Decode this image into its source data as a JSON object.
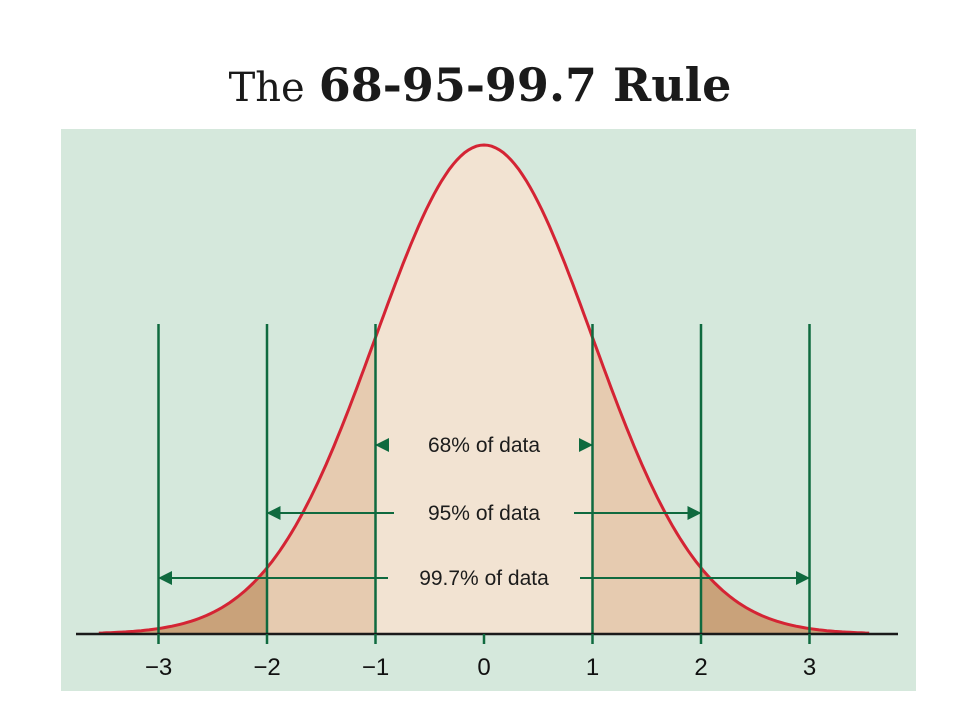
{
  "title": {
    "prefix": "The",
    "main": "68-95-99.7 Rule"
  },
  "colors": {
    "panel_bg": "#d5e8dc",
    "curve": "#d42434",
    "center_fill": "#f2e3d2",
    "one_to_two_sd_fill": "#e6cbb0",
    "two_to_three_sd_fill": "#c9a27a",
    "guide_lines": "#0f6a3f",
    "axis": "#1a1a1a"
  },
  "chart_data": {
    "type": "area",
    "distribution": "standard normal",
    "x_range": [
      -3.55,
      3.55
    ],
    "xticks": [
      -3,
      -2,
      -1,
      0,
      1,
      2,
      3
    ],
    "xtick_labels": [
      "−3",
      "−2",
      "−1",
      "0",
      "1",
      "2",
      "3"
    ],
    "bands": [
      {
        "label": "68% of data",
        "from": -1,
        "to": 1,
        "percent": 68
      },
      {
        "label": "95% of data",
        "from": -2,
        "to": 2,
        "percent": 95
      },
      {
        "label": "99.7% of data",
        "from": -3,
        "to": 3,
        "percent": 99.7
      }
    ]
  }
}
